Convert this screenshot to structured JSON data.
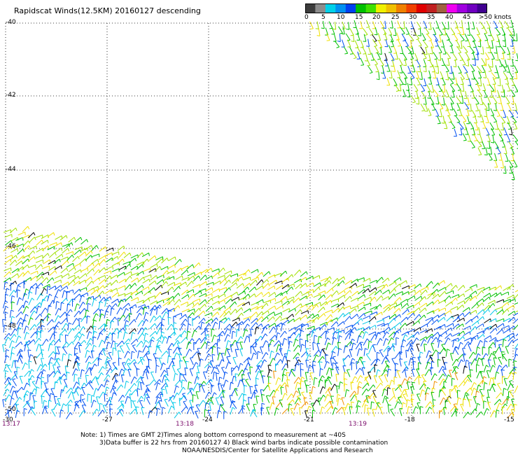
{
  "title": "Rapidscat Winds(12.5KM) 20160127 descending",
  "colorbar": {
    "labels": [
      "0",
      "5",
      "10",
      "15",
      "20",
      "25",
      "30",
      "35",
      "40",
      "45",
      ">50 knots"
    ],
    "colors": [
      "#3c3c3c",
      "#8c8c8c",
      "#00d0e8",
      "#0090f0",
      "#0040f0",
      "#00c000",
      "#40e000",
      "#f0f000",
      "#f0c000",
      "#f08000",
      "#f04000",
      "#e00000",
      "#c02020",
      "#a06040",
      "#f000f0",
      "#a000e0",
      "#7000c0",
      "#400090"
    ]
  },
  "map": {
    "lat_labels": [
      "-40",
      "-42",
      "-44",
      "-46",
      "-48",
      "-50"
    ],
    "lon_labels": [
      "-30",
      "-27",
      "-24",
      "-21",
      "-18",
      "-15"
    ],
    "time_labels": [
      "13:17",
      "13:18",
      "13:19"
    ],
    "swath_colors": {
      "calm": "#00c8e8",
      "light": "#0050f0",
      "moderate": "#00c000",
      "fresh": "#a0e000",
      "strong": "#f0e000",
      "gale": "#f09000",
      "contaminated": "#000000"
    }
  },
  "notes": [
    "Note: 1) Times are GMT 2)Times along bottom correspond to measurement at ~40S",
    "3)Data buffer is 22 hrs from 20160127 4) Black wind barbs indicate possible contamination",
    "NOAA/NESDIS/Center for Satellite Applications and Research"
  ]
}
